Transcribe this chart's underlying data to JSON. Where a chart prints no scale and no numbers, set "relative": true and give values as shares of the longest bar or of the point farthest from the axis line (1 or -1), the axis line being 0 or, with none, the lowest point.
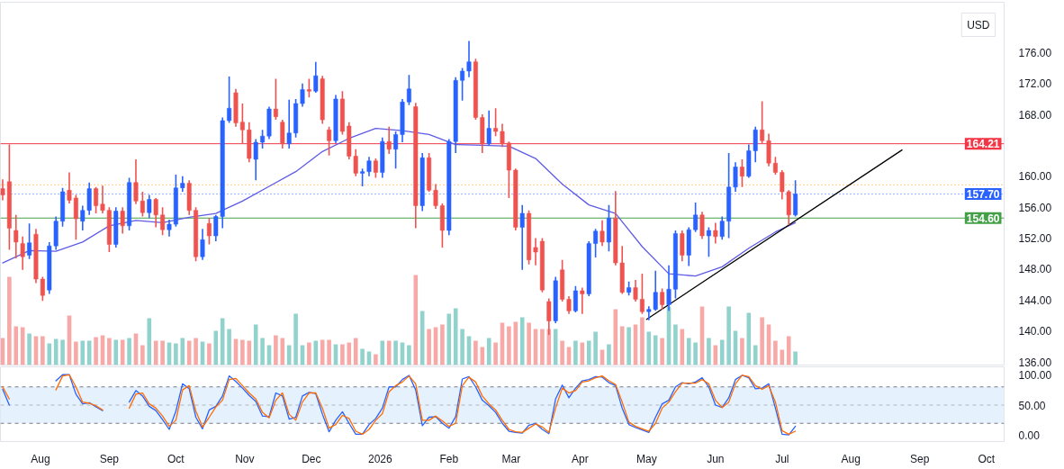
{
  "chart_data": [
    {
      "type": "candlestick",
      "xlim": [
        "2025-07-14",
        "2026-10-09"
      ],
      "ylim": [
        135.6,
        182.5
      ],
      "tick_labels": "y",
      "yticks": [
        {
          "value": 136,
          "label": "136.00"
        },
        {
          "value": 140,
          "label": "140.00"
        },
        {
          "value": 144,
          "label": "144.00"
        },
        {
          "value": 148,
          "label": "148.00"
        },
        {
          "value": 152,
          "label": "152.00"
        },
        {
          "value": 156,
          "label": "156.00"
        },
        {
          "value": 160,
          "label": "160.00"
        },
        {
          "value": 168,
          "label": "168.00"
        },
        {
          "value": 172,
          "label": "172.00"
        },
        {
          "value": 176,
          "label": "176.00"
        }
      ],
      "x": [
        "2025-07-15",
        "2025-07-18",
        "2025-07-21",
        "2025-07-24",
        "2025-07-27",
        "2025-07-30",
        "2025-08-02",
        "2025-08-05",
        "2025-08-08",
        "2025-08-11",
        "2025-08-14",
        "2025-08-17",
        "2025-08-20",
        "2025-08-23",
        "2025-08-26",
        "2025-08-29",
        "2025-09-01",
        "2025-09-04",
        "2025-09-07",
        "2025-09-10",
        "2025-09-13",
        "2025-09-16",
        "2025-09-19",
        "2025-09-22",
        "2025-09-25",
        "2025-09-28",
        "2025-10-01",
        "2025-10-04",
        "2025-10-07",
        "2025-10-10",
        "2025-10-13",
        "2025-10-16",
        "2025-10-19",
        "2025-10-22",
        "2025-10-25",
        "2025-10-28",
        "2025-10-31",
        "2025-11-03",
        "2025-11-06",
        "2025-11-09",
        "2025-11-12",
        "2025-11-15",
        "2025-11-18",
        "2025-11-21",
        "2025-11-24",
        "2025-11-27",
        "2025-11-30",
        "2025-12-03",
        "2025-12-06",
        "2025-12-09",
        "2025-12-12",
        "2025-12-15",
        "2025-12-18",
        "2025-12-21",
        "2025-12-24",
        "2025-12-27",
        "2025-12-30",
        "2026-01-02",
        "2026-01-05",
        "2026-01-08",
        "2026-01-11",
        "2026-01-14",
        "2026-01-17",
        "2026-01-20",
        "2026-01-23",
        "2026-01-26",
        "2026-01-29",
        "2026-02-01",
        "2026-02-04",
        "2026-02-07",
        "2026-02-10",
        "2026-02-13",
        "2026-02-16",
        "2026-02-19",
        "2026-02-22",
        "2026-02-25",
        "2026-02-28",
        "2026-03-03",
        "2026-03-06",
        "2026-03-09",
        "2026-03-12",
        "2026-03-15",
        "2026-03-18",
        "2026-03-21",
        "2026-03-24",
        "2026-03-27",
        "2026-03-30",
        "2026-04-02",
        "2026-04-05",
        "2026-04-08",
        "2026-04-11",
        "2026-04-14",
        "2026-04-17",
        "2026-04-20",
        "2026-04-23",
        "2026-04-26",
        "2026-04-29",
        "2026-05-02",
        "2026-05-05",
        "2026-05-08",
        "2026-05-11",
        "2026-05-14",
        "2026-05-17",
        "2026-05-20",
        "2026-05-23",
        "2026-05-26",
        "2026-05-29",
        "2026-06-01",
        "2026-06-04",
        "2026-06-07",
        "2026-06-10",
        "2026-06-13",
        "2026-06-16",
        "2026-06-19",
        "2026-06-22",
        "2026-06-25",
        "2026-06-28",
        "2026-07-01",
        "2026-07-04",
        "2026-07-07"
      ],
      "ohlc": [
        [
          158.4,
          159.6,
          156.9,
          157.6
        ],
        [
          159.3,
          164.1,
          150.5,
          153.3
        ],
        [
          153.0,
          155.0,
          149.4,
          151.5
        ],
        [
          151.3,
          152.2,
          147.9,
          149.6
        ],
        [
          149.8,
          153.9,
          149.3,
          151.4
        ],
        [
          152.5,
          153.2,
          146.2,
          146.7
        ],
        [
          146.7,
          147.0,
          143.9,
          144.6
        ],
        [
          145.3,
          151.5,
          144.8,
          151.0
        ],
        [
          151.0,
          154.8,
          150.5,
          154.2
        ],
        [
          154.2,
          158.5,
          153.5,
          158.0
        ],
        [
          158.2,
          160.5,
          156.5,
          156.9
        ],
        [
          157.2,
          157.6,
          151.8,
          154.5
        ],
        [
          154.2,
          156.2,
          153.0,
          155.6
        ],
        [
          155.6,
          159.2,
          155.0,
          158.4
        ],
        [
          158.4,
          158.6,
          155.2,
          156.2
        ],
        [
          156.4,
          158.8,
          155.2,
          155.6
        ],
        [
          155.6,
          156.0,
          150.2,
          151.2
        ],
        [
          151.2,
          156.0,
          150.8,
          155.5
        ],
        [
          155.5,
          156.0,
          152.6,
          153.6
        ],
        [
          153.6,
          159.8,
          153.0,
          159.2
        ],
        [
          159.2,
          162.2,
          156.4,
          156.8
        ],
        [
          156.8,
          158.0,
          154.8,
          155.3
        ],
        [
          155.3,
          157.6,
          154.6,
          157.0
        ],
        [
          157.0,
          157.2,
          153.4,
          155.0
        ],
        [
          155.0,
          156.0,
          152.4,
          153.1
        ],
        [
          153.1,
          154.4,
          152.2,
          153.8
        ],
        [
          153.8,
          160.2,
          153.5,
          158.5
        ],
        [
          158.5,
          160.0,
          158.0,
          159.1
        ],
        [
          159.1,
          159.5,
          155.0,
          155.6
        ],
        [
          155.6,
          156.0,
          149.0,
          149.6
        ],
        [
          149.6,
          153.2,
          149.2,
          151.8
        ],
        [
          153.9,
          154.6,
          151.2,
          152.3
        ],
        [
          152.3,
          155.0,
          151.6,
          154.8
        ],
        [
          154.8,
          167.6,
          153.3,
          167.2
        ],
        [
          167.2,
          172.9,
          166.9,
          168.8
        ],
        [
          170.8,
          171.3,
          166.4,
          166.9
        ],
        [
          167.0,
          169.4,
          164.3,
          166.0
        ],
        [
          166.0,
          167.0,
          161.8,
          162.3
        ],
        [
          162.2,
          164.8,
          159.5,
          164.4
        ],
        [
          164.4,
          166.0,
          163.6,
          165.2
        ],
        [
          165.2,
          169.0,
          164.8,
          168.7
        ],
        [
          168.7,
          172.6,
          167.3,
          167.7
        ],
        [
          167.0,
          167.3,
          163.6,
          164.2
        ],
        [
          164.2,
          169.9,
          163.6,
          165.6
        ],
        [
          165.6,
          170.0,
          165.0,
          169.4
        ],
        [
          169.4,
          172.0,
          169.0,
          171.2
        ],
        [
          171.2,
          172.6,
          170.2,
          171.0
        ],
        [
          171.0,
          174.8,
          170.8,
          173.0
        ],
        [
          172.6,
          173.0,
          166.8,
          167.3
        ],
        [
          166.0,
          166.4,
          162.7,
          164.6
        ],
        [
          164.6,
          170.5,
          164.3,
          170.0
        ],
        [
          170.0,
          171.0,
          165.4,
          165.8
        ],
        [
          166.5,
          167.0,
          162.2,
          162.6
        ],
        [
          162.6,
          163.5,
          160.0,
          160.4
        ],
        [
          160.4,
          161.0,
          158.7,
          160.6
        ],
        [
          160.6,
          162.5,
          160.0,
          162.0
        ],
        [
          162.0,
          162.3,
          159.8,
          160.5
        ],
        [
          160.5,
          165.0,
          159.8,
          164.5
        ],
        [
          164.5,
          166.4,
          162.9,
          163.5
        ],
        [
          163.5,
          165.8,
          161.0,
          165.4
        ],
        [
          165.4,
          170.0,
          164.4,
          169.6
        ],
        [
          169.6,
          173.1,
          169.2,
          171.3
        ],
        [
          169.0,
          169.5,
          153.3,
          156.2
        ],
        [
          156.2,
          163.0,
          155.5,
          162.4
        ],
        [
          162.4,
          163.0,
          158.0,
          158.2
        ],
        [
          158.2,
          159.0,
          155.8,
          156.2
        ],
        [
          156.2,
          156.5,
          150.8,
          153.0
        ],
        [
          153.0,
          164.8,
          152.4,
          164.5
        ],
        [
          164.5,
          172.8,
          163.0,
          172.4
        ],
        [
          172.4,
          174.0,
          169.8,
          173.6
        ],
        [
          173.6,
          177.5,
          172.8,
          174.8
        ],
        [
          174.8,
          175.2,
          167.3,
          167.6
        ],
        [
          167.6,
          168.0,
          163.0,
          164.2
        ],
        [
          164.2,
          168.5,
          164.0,
          166.2
        ],
        [
          166.2,
          168.8,
          165.2,
          165.8
        ],
        [
          165.8,
          166.8,
          163.8,
          164.3
        ],
        [
          164.3,
          164.5,
          157.2,
          160.8
        ],
        [
          160.8,
          161.0,
          153.0,
          153.4
        ],
        [
          153.4,
          156.3,
          147.9,
          155.2
        ],
        [
          155.2,
          155.6,
          148.6,
          149.2
        ],
        [
          150.8,
          152.0,
          148.5,
          150.2
        ],
        [
          151.6,
          152.0,
          145.0,
          145.3
        ],
        [
          143.8,
          144.2,
          139.5,
          141.3
        ],
        [
          141.3,
          147.0,
          141.0,
          146.5
        ],
        [
          147.9,
          149.2,
          143.8,
          144.1
        ],
        [
          144.1,
          144.5,
          142.2,
          142.6
        ],
        [
          142.6,
          145.8,
          142.4,
          145.2
        ],
        [
          145.2,
          145.6,
          142.2,
          144.8
        ],
        [
          144.8,
          151.6,
          144.5,
          151.3
        ],
        [
          151.3,
          153.2,
          149.5,
          152.9
        ],
        [
          152.9,
          154.3,
          151.0,
          151.5
        ],
        [
          151.5,
          156.3,
          150.3,
          154.6
        ],
        [
          154.6,
          158.1,
          148.5,
          148.8
        ],
        [
          148.8,
          151.0,
          144.8,
          145.0
        ],
        [
          145.0,
          146.4,
          144.6,
          145.6
        ],
        [
          145.6,
          146.6,
          143.8,
          144.1
        ],
        [
          144.1,
          147.4,
          142.2,
          142.5
        ],
        [
          142.5,
          143.2,
          141.4,
          142.8
        ],
        [
          142.8,
          147.8,
          142.6,
          145.0
        ],
        [
          145.0,
          145.5,
          142.8,
          143.4
        ],
        [
          143.4,
          148.5,
          142.6,
          145.4
        ],
        [
          145.4,
          153.0,
          144.2,
          152.6
        ],
        [
          152.6,
          153.0,
          149.0,
          149.8
        ],
        [
          149.8,
          153.4,
          148.4,
          153.1
        ],
        [
          153.1,
          156.6,
          152.8,
          155.0
        ],
        [
          155.0,
          155.4,
          151.9,
          152.3
        ],
        [
          152.3,
          153.4,
          149.6,
          153.0
        ],
        [
          153.0,
          154.0,
          151.3,
          152.2
        ],
        [
          152.2,
          154.8,
          151.8,
          154.2
        ],
        [
          154.2,
          163.0,
          152.0,
          158.6
        ],
        [
          158.6,
          161.8,
          158.0,
          161.2
        ],
        [
          161.2,
          162.2,
          158.6,
          160.0
        ],
        [
          160.0,
          164.1,
          159.8,
          163.3
        ],
        [
          163.3,
          166.4,
          161.8,
          166.0
        ],
        [
          166.0,
          169.7,
          164.3,
          164.6
        ],
        [
          164.6,
          165.5,
          161.3,
          161.7
        ],
        [
          161.7,
          162.5,
          160.2,
          160.5
        ],
        [
          160.5,
          160.8,
          157.0,
          158.0
        ],
        [
          158.0,
          158.2,
          153.7,
          155.0
        ],
        [
          155.0,
          159.5,
          154.8,
          157.7
        ]
      ],
      "colors": [
        "#ef5350",
        "#ef5350",
        "#ef5350",
        "#ef5350",
        "#2962ff",
        "#ef5350",
        "#ef5350",
        "#2962ff",
        "#2962ff",
        "#2962ff",
        "#ef5350",
        "#ef5350",
        "#2962ff",
        "#2962ff",
        "#ef5350",
        "#ef5350",
        "#ef5350",
        "#2962ff",
        "#ef5350",
        "#2962ff",
        "#ef5350",
        "#ef5350",
        "#2962ff",
        "#ef5350",
        "#ef5350",
        "#2962ff",
        "#2962ff",
        "#2962ff",
        "#ef5350",
        "#ef5350",
        "#2962ff",
        "#ef5350",
        "#2962ff",
        "#2962ff",
        "#2962ff",
        "#ef5350",
        "#ef5350",
        "#ef5350",
        "#2962ff",
        "#2962ff",
        "#2962ff",
        "#ef5350",
        "#ef5350",
        "#2962ff",
        "#2962ff",
        "#2962ff",
        "#ef5350",
        "#2962ff",
        "#ef5350",
        "#ef5350",
        "#2962ff",
        "#ef5350",
        "#ef5350",
        "#ef5350",
        "#2962ff",
        "#2962ff",
        "#ef5350",
        "#2962ff",
        "#ef5350",
        "#2962ff",
        "#2962ff",
        "#2962ff",
        "#ef5350",
        "#2962ff",
        "#ef5350",
        "#ef5350",
        "#ef5350",
        "#2962ff",
        "#2962ff",
        "#2962ff",
        "#2962ff",
        "#ef5350",
        "#ef5350",
        "#2962ff",
        "#ef5350",
        "#ef5350",
        "#ef5350",
        "#ef5350",
        "#2962ff",
        "#ef5350",
        "#ef5350",
        "#ef5350",
        "#ef5350",
        "#2962ff",
        "#ef5350",
        "#ef5350",
        "#2962ff",
        "#ef5350",
        "#2962ff",
        "#2962ff",
        "#ef5350",
        "#2962ff",
        "#ef5350",
        "#ef5350",
        "#2962ff",
        "#ef5350",
        "#ef5350",
        "#2962ff",
        "#2962ff",
        "#ef5350",
        "#2962ff",
        "#2962ff",
        "#ef5350",
        "#2962ff",
        "#2962ff",
        "#ef5350",
        "#2962ff",
        "#ef5350",
        "#2962ff",
        "#2962ff",
        "#2962ff",
        "#ef5350",
        "#2962ff",
        "#2962ff",
        "#ef5350",
        "#ef5350",
        "#ef5350",
        "#ef5350",
        "#ef5350",
        "#2962ff"
      ],
      "series": [
        {
          "type": "line",
          "color": "#5e5ce6",
          "x": [
            "2025-07-15",
            "2025-07-27",
            "2025-08-08",
            "2025-08-20",
            "2025-09-01",
            "2025-09-13",
            "2025-09-25",
            "2025-10-07",
            "2025-10-19",
            "2025-10-31",
            "2025-11-12",
            "2025-11-24",
            "2025-12-06",
            "2025-12-18",
            "2025-12-30",
            "2026-01-11",
            "2026-01-23",
            "2026-02-04",
            "2026-02-16",
            "2026-02-28",
            "2026-03-12",
            "2026-03-24",
            "2026-04-05",
            "2026-04-17",
            "2026-04-29",
            "2026-05-11",
            "2026-05-23",
            "2026-06-04",
            "2026-06-16",
            "2026-06-28",
            "2026-07-07"
          ],
          "values": [
            148.8,
            150.4,
            150.3,
            151.5,
            153.6,
            154.3,
            154.0,
            154.7,
            155.2,
            156.8,
            158.7,
            160.6,
            163.2,
            164.9,
            166.2,
            165.9,
            165.4,
            164.1,
            164.0,
            163.9,
            162.3,
            159.0,
            156.3,
            155.2,
            150.9,
            147.4,
            147.1,
            148.3,
            150.7,
            152.8,
            154.0
          ]
        },
        {
          "type": "line",
          "color": "#000000",
          "x": [
            "2026-05-01",
            "2026-08-24"
          ],
          "values": [
            141.5,
            163.4
          ]
        }
      ],
      "ref_lines": [
        {
          "axis": "y",
          "value": 164.21,
          "label": "164.21",
          "color": "#f23645",
          "line_style": "solid"
        },
        {
          "axis": "y",
          "value": 158.9,
          "color": "#ff9800",
          "line_style": "dotted"
        },
        {
          "axis": "y",
          "value": 157.7,
          "label": "157.70",
          "color": "#2962ff",
          "line_style": "dotted"
        },
        {
          "axis": "y",
          "value": 154.6,
          "label": "154.60",
          "color": "#43a047",
          "line_style": "solid"
        }
      ],
      "annotations": [
        "USD"
      ]
    },
    {
      "type": "bar",
      "relative": true,
      "tick_labels": false,
      "xlim": [
        "2025-07-14",
        "2026-10-09"
      ],
      "x": [
        "2025-07-15",
        "2025-07-18",
        "2025-07-21",
        "2025-07-24",
        "2025-07-27",
        "2025-07-30",
        "2025-08-02",
        "2025-08-05",
        "2025-08-08",
        "2025-08-11",
        "2025-08-14",
        "2025-08-17",
        "2025-08-20",
        "2025-08-23",
        "2025-08-26",
        "2025-08-29",
        "2025-09-01",
        "2025-09-04",
        "2025-09-07",
        "2025-09-10",
        "2025-09-13",
        "2025-09-16",
        "2025-09-19",
        "2025-09-22",
        "2025-09-25",
        "2025-09-28",
        "2025-10-01",
        "2025-10-04",
        "2025-10-07",
        "2025-10-10",
        "2025-10-13",
        "2025-10-16",
        "2025-10-19",
        "2025-10-22",
        "2025-10-25",
        "2025-10-28",
        "2025-10-31",
        "2025-11-03",
        "2025-11-06",
        "2025-11-09",
        "2025-11-12",
        "2025-11-15",
        "2025-11-18",
        "2025-11-21",
        "2025-11-24",
        "2025-11-27",
        "2025-11-30",
        "2025-12-03",
        "2025-12-06",
        "2025-12-09",
        "2025-12-12",
        "2025-12-15",
        "2025-12-18",
        "2025-12-21",
        "2025-12-24",
        "2025-12-27",
        "2025-12-30",
        "2026-01-02",
        "2026-01-05",
        "2026-01-08",
        "2026-01-11",
        "2026-01-14",
        "2026-01-17",
        "2026-01-20",
        "2026-01-23",
        "2026-01-26",
        "2026-01-29",
        "2026-02-01",
        "2026-02-04",
        "2026-02-07",
        "2026-02-10",
        "2026-02-13",
        "2026-02-16",
        "2026-02-19",
        "2026-02-22",
        "2026-02-25",
        "2026-02-28",
        "2026-03-03",
        "2026-03-06",
        "2026-03-09",
        "2026-03-12",
        "2026-03-15",
        "2026-03-18",
        "2026-03-21",
        "2026-03-24",
        "2026-03-27",
        "2026-03-30",
        "2026-04-02",
        "2026-04-05",
        "2026-04-08",
        "2026-04-11",
        "2026-04-14",
        "2026-04-17",
        "2026-04-20",
        "2026-04-23",
        "2026-04-26",
        "2026-04-29",
        "2026-05-02",
        "2026-05-05",
        "2026-05-08",
        "2026-05-11",
        "2026-05-14",
        "2026-05-17",
        "2026-05-20",
        "2026-05-23",
        "2026-05-26",
        "2026-05-29",
        "2026-06-01",
        "2026-06-04",
        "2026-06-07",
        "2026-06-10",
        "2026-06-13",
        "2026-06-16",
        "2026-06-19",
        "2026-06-22",
        "2026-06-25",
        "2026-06-28",
        "2026-07-01",
        "2026-07-04",
        "2026-07-07"
      ],
      "values": [
        0.3,
        0.98,
        0.43,
        0.42,
        0.35,
        0.32,
        0.32,
        0.24,
        0.29,
        0.28,
        0.55,
        0.26,
        0.27,
        0.27,
        0.31,
        0.33,
        0.3,
        0.28,
        0.28,
        0.3,
        0.35,
        0.22,
        0.52,
        0.27,
        0.27,
        0.25,
        0.24,
        0.3,
        0.27,
        0.3,
        0.26,
        0.24,
        0.38,
        0.52,
        0.4,
        0.29,
        0.28,
        0.27,
        0.45,
        0.3,
        0.22,
        0.33,
        0.3,
        0.22,
        0.57,
        0.22,
        0.25,
        0.27,
        0.28,
        0.28,
        0.23,
        0.23,
        0.25,
        0.3,
        0.18,
        0.15,
        0.12,
        0.27,
        0.27,
        0.27,
        0.25,
        0.22,
        1.0,
        0.6,
        0.4,
        0.42,
        0.45,
        0.57,
        0.63,
        0.4,
        0.32,
        0.27,
        0.2,
        0.3,
        0.25,
        0.47,
        0.43,
        0.48,
        0.53,
        0.47,
        0.4,
        0.4,
        0.4,
        0.4,
        0.27,
        0.2,
        0.27,
        0.25,
        0.27,
        0.37,
        0.17,
        0.23,
        0.62,
        0.43,
        0.42,
        0.45,
        0.53,
        0.37,
        0.33,
        0.3,
        0.65,
        0.45,
        0.4,
        0.3,
        0.25,
        0.65,
        0.3,
        0.22,
        0.28,
        0.65,
        0.38,
        0.3,
        0.58,
        0.22,
        0.53,
        0.45,
        0.27,
        0.17,
        0.32,
        0.15
      ],
      "colors": [
        "#f7a9a7",
        "#f7a9a7",
        "#f7a9a7",
        "#f7a9a7",
        "#92d2cc",
        "#f7a9a7",
        "#f7a9a7",
        "#92d2cc",
        "#92d2cc",
        "#92d2cc",
        "#f7a9a7",
        "#f7a9a7",
        "#92d2cc",
        "#92d2cc",
        "#f7a9a7",
        "#f7a9a7",
        "#f7a9a7",
        "#92d2cc",
        "#f7a9a7",
        "#92d2cc",
        "#f7a9a7",
        "#f7a9a7",
        "#92d2cc",
        "#f7a9a7",
        "#f7a9a7",
        "#92d2cc",
        "#92d2cc",
        "#92d2cc",
        "#f7a9a7",
        "#f7a9a7",
        "#92d2cc",
        "#f7a9a7",
        "#92d2cc",
        "#92d2cc",
        "#92d2cc",
        "#f7a9a7",
        "#f7a9a7",
        "#f7a9a7",
        "#92d2cc",
        "#92d2cc",
        "#92d2cc",
        "#f7a9a7",
        "#f7a9a7",
        "#92d2cc",
        "#92d2cc",
        "#92d2cc",
        "#f7a9a7",
        "#92d2cc",
        "#f7a9a7",
        "#f7a9a7",
        "#92d2cc",
        "#f7a9a7",
        "#f7a9a7",
        "#f7a9a7",
        "#92d2cc",
        "#92d2cc",
        "#f7a9a7",
        "#92d2cc",
        "#f7a9a7",
        "#92d2cc",
        "#92d2cc",
        "#92d2cc",
        "#f7a9a7",
        "#92d2cc",
        "#f7a9a7",
        "#f7a9a7",
        "#f7a9a7",
        "#92d2cc",
        "#92d2cc",
        "#92d2cc",
        "#92d2cc",
        "#f7a9a7",
        "#f7a9a7",
        "#92d2cc",
        "#f7a9a7",
        "#f7a9a7",
        "#f7a9a7",
        "#f7a9a7",
        "#92d2cc",
        "#f7a9a7",
        "#f7a9a7",
        "#f7a9a7",
        "#f7a9a7",
        "#92d2cc",
        "#f7a9a7",
        "#f7a9a7",
        "#92d2cc",
        "#f7a9a7",
        "#92d2cc",
        "#92d2cc",
        "#f7a9a7",
        "#92d2cc",
        "#f7a9a7",
        "#f7a9a7",
        "#92d2cc",
        "#f7a9a7",
        "#f7a9a7",
        "#92d2cc",
        "#92d2cc",
        "#f7a9a7",
        "#92d2cc",
        "#92d2cc",
        "#f7a9a7",
        "#92d2cc",
        "#92d2cc",
        "#f7a9a7",
        "#92d2cc",
        "#f7a9a7",
        "#92d2cc",
        "#92d2cc",
        "#92d2cc",
        "#f7a9a7",
        "#92d2cc",
        "#92d2cc",
        "#f7a9a7",
        "#f7a9a7",
        "#f7a9a7",
        "#f7a9a7",
        "#f7a9a7",
        "#92d2cc"
      ]
    },
    {
      "type": "line",
      "xlim": [
        "2025-07-14",
        "2026-10-09"
      ],
      "ylim": [
        -10,
        113
      ],
      "xticks": [
        {
          "value": "2025-08-01",
          "label": "Aug"
        },
        {
          "value": "2025-09-01",
          "label": "Sep"
        },
        {
          "value": "2025-10-01",
          "label": "Oct"
        },
        {
          "value": "2025-11-01",
          "label": "Nov"
        },
        {
          "value": "2025-12-01",
          "label": "Dec"
        },
        {
          "value": "2026-01-01",
          "label": "2026"
        },
        {
          "value": "2026-02-01",
          "label": "Feb"
        },
        {
          "value": "2026-03-01",
          "label": "Mar"
        },
        {
          "value": "2026-04-01",
          "label": "Apr"
        },
        {
          "value": "2026-05-01",
          "label": "May"
        },
        {
          "value": "2026-06-01",
          "label": "Jun"
        },
        {
          "value": "2026-07-01",
          "label": "Jul"
        },
        {
          "value": "2026-08-01",
          "label": "Aug"
        },
        {
          "value": "2026-09-01",
          "label": "Sep"
        },
        {
          "value": "2026-10-01",
          "label": "Oct"
        }
      ],
      "yticks": [
        {
          "value": 0,
          "label": "0.00"
        },
        {
          "value": 50,
          "label": "50.00"
        },
        {
          "value": 100,
          "label": "100.00"
        }
      ],
      "x": [
        "2025-07-15",
        "2025-07-18",
        "2025-07-21",
        "2025-07-24",
        "2025-07-27",
        "2025-07-30",
        "2025-08-02",
        "2025-08-05",
        "2025-08-08",
        "2025-08-11",
        "2025-08-14",
        "2025-08-17",
        "2025-08-20",
        "2025-08-23",
        "2025-08-26",
        "2025-08-29",
        "2025-09-01",
        "2025-09-04",
        "2025-09-07",
        "2025-09-10",
        "2025-09-13",
        "2025-09-16",
        "2025-09-19",
        "2025-09-22",
        "2025-09-25",
        "2025-09-28",
        "2025-10-01",
        "2025-10-04",
        "2025-10-07",
        "2025-10-10",
        "2025-10-13",
        "2025-10-16",
        "2025-10-19",
        "2025-10-22",
        "2025-10-25",
        "2025-10-28",
        "2025-10-31",
        "2025-11-03",
        "2025-11-06",
        "2025-11-09",
        "2025-11-12",
        "2025-11-15",
        "2025-11-18",
        "2025-11-21",
        "2025-11-24",
        "2025-11-27",
        "2025-11-30",
        "2025-12-03",
        "2025-12-06",
        "2025-12-09",
        "2025-12-12",
        "2025-12-15",
        "2025-12-18",
        "2025-12-21",
        "2025-12-24",
        "2025-12-27",
        "2025-12-30",
        "2026-01-02",
        "2026-01-05",
        "2026-01-08",
        "2026-01-11",
        "2026-01-14",
        "2026-01-17",
        "2026-01-20",
        "2026-01-23",
        "2026-01-26",
        "2026-01-29",
        "2026-02-01",
        "2026-02-04",
        "2026-02-07",
        "2026-02-10",
        "2026-02-13",
        "2026-02-16",
        "2026-02-19",
        "2026-02-22",
        "2026-02-25",
        "2026-02-28",
        "2026-03-03",
        "2026-03-06",
        "2026-03-09",
        "2026-03-12",
        "2026-03-15",
        "2026-03-18",
        "2026-03-21",
        "2026-03-24",
        "2026-03-27",
        "2026-03-30",
        "2026-04-02",
        "2026-04-05",
        "2026-04-08",
        "2026-04-11",
        "2026-04-14",
        "2026-04-17",
        "2026-04-20",
        "2026-04-23",
        "2026-04-26",
        "2026-04-29",
        "2026-05-02",
        "2026-05-05",
        "2026-05-08",
        "2026-05-11",
        "2026-05-14",
        "2026-05-17",
        "2026-05-20",
        "2026-05-23",
        "2026-05-26",
        "2026-05-29",
        "2026-06-01",
        "2026-06-04",
        "2026-06-07",
        "2026-06-10",
        "2026-06-13",
        "2026-06-16",
        "2026-06-19",
        "2026-06-22",
        "2026-06-25",
        "2026-06-28",
        "2026-07-01",
        "2026-07-04",
        "2026-07-07"
      ],
      "series": [
        {
          "color": "#2962ff",
          "values": [
            76,
            50,
            null,
            null,
            null,
            null,
            null,
            null,
            90,
            100,
            100,
            68,
            52,
            54,
            47,
            41,
            null,
            null,
            null,
            55,
            74,
            65,
            48,
            41,
            26,
            10,
            40,
            85,
            77,
            30,
            11,
            42,
            48,
            65,
            98,
            89,
            78,
            66,
            56,
            32,
            31,
            70,
            65,
            27,
            30,
            65,
            71,
            69,
            35,
            6,
            25,
            39,
            20,
            2,
            2,
            18,
            28,
            45,
            80,
            80,
            92,
            99,
            75,
            16,
            30,
            31,
            20,
            12,
            31,
            93,
            97,
            80,
            58,
            49,
            38,
            20,
            7,
            5,
            4,
            17,
            20,
            10,
            3,
            60,
            83,
            62,
            78,
            90,
            92,
            97,
            96,
            87,
            82,
            45,
            18,
            13,
            9,
            5,
            30,
            52,
            58,
            80,
            87,
            85,
            88,
            95,
            80,
            50,
            46,
            62,
            92,
            99,
            95,
            77,
            78,
            85,
            45,
            2,
            1,
            15
          ]
        },
        {
          "color": "#ff6d00",
          "values": [
            80,
            60,
            null,
            null,
            null,
            null,
            null,
            null,
            75,
            98,
            100,
            80,
            55,
            53,
            49,
            42,
            null,
            null,
            null,
            45,
            68,
            70,
            52,
            45,
            32,
            15,
            25,
            75,
            82,
            40,
            14,
            30,
            47,
            58,
            92,
            94,
            82,
            70,
            60,
            38,
            29,
            58,
            70,
            35,
            25,
            55,
            70,
            70,
            45,
            12,
            18,
            33,
            28,
            7,
            2,
            10,
            25,
            36,
            72,
            82,
            88,
            98,
            85,
            25,
            25,
            32,
            24,
            15,
            20,
            82,
            96,
            88,
            65,
            52,
            42,
            25,
            10,
            6,
            5,
            12,
            19,
            14,
            5,
            45,
            78,
            70,
            74,
            88,
            90,
            95,
            98,
            90,
            84,
            55,
            22,
            15,
            11,
            7,
            20,
            45,
            55,
            72,
            86,
            86,
            86,
            92,
            85,
            58,
            46,
            55,
            85,
            99,
            97,
            82,
            76,
            82,
            55,
            8,
            2,
            7
          ]
        }
      ],
      "ref_lines": [
        {
          "axis": "y",
          "value": 80,
          "color": "#787b86",
          "line_style": "dashed"
        },
        {
          "axis": "y",
          "value": 50,
          "color": "#b2b5be",
          "line_style": "dashed"
        },
        {
          "axis": "y",
          "value": 20,
          "color": "#787b86",
          "line_style": "dashed"
        }
      ],
      "bands": [
        {
          "axis": "y",
          "from": 20,
          "to": 80,
          "color": "#e5f1fd"
        }
      ]
    }
  ]
}
